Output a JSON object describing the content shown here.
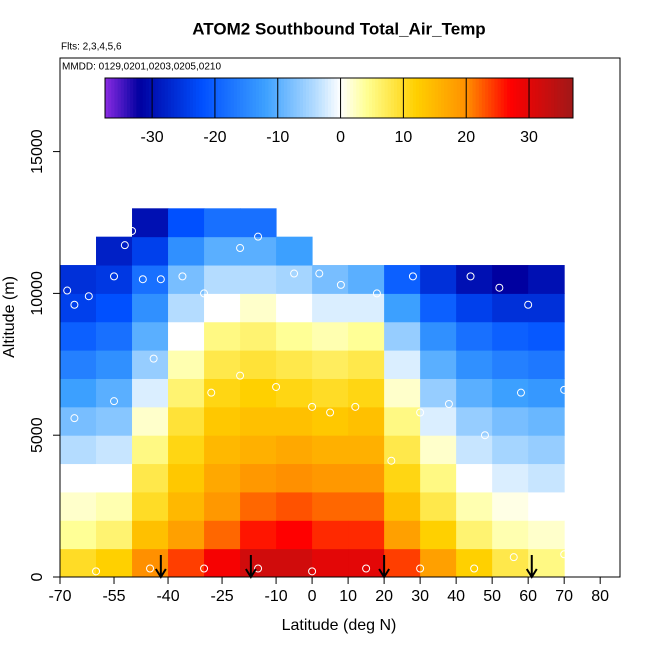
{
  "chart_data": {
    "type": "heatmap",
    "title": "ATOM2 Southbound Total_Air_Temp",
    "subtitle_lines": [
      "Flts: 2,3,4,5,6",
      "MMDD: 0129,0201,0203,0205,0210"
    ],
    "xlabel": "Latitude (deg N)",
    "ylabel": "Altitude (m)",
    "xlim": [
      -70,
      85.5
    ],
    "ylim": [
      0,
      18300
    ],
    "xticks": [
      -70,
      -55,
      -40,
      -25,
      -10,
      0,
      10,
      20,
      30,
      40,
      50,
      60,
      70,
      80
    ],
    "yticks": [
      0,
      5000,
      10000,
      15000
    ],
    "x": [
      -65,
      -55,
      -45,
      -35,
      -25,
      -15,
      -5,
      5,
      15,
      25,
      35,
      45,
      55,
      65
    ],
    "y": [
      0,
      1000,
      2000,
      3000,
      4000,
      5000,
      6000,
      7000,
      8000,
      9000,
      10000,
      11000,
      12000
    ],
    "z": [
      [
        10,
        4,
        2,
        0,
        -4,
        -8,
        -12,
        -16,
        -20,
        -24,
        -26,
        null,
        null
      ],
      [
        12,
        6,
        3,
        0,
        -3,
        -7,
        -10,
        -14,
        -18,
        -22,
        -25,
        -28,
        null
      ],
      [
        20,
        14,
        10,
        8,
        5,
        2,
        -2,
        -6,
        -10,
        -14,
        -18,
        -24,
        -30
      ],
      [
        24,
        18,
        15,
        13,
        11,
        9,
        6,
        3,
        0,
        -4,
        -8,
        -14,
        -22
      ],
      [
        28,
        22,
        19,
        17,
        15,
        13,
        11,
        8,
        5,
        0,
        -4,
        -10,
        -18
      ],
      [
        32,
        26,
        22,
        19,
        16,
        14,
        12,
        9,
        6,
        2,
        -4,
        -10,
        -18
      ],
      [
        32,
        27,
        23,
        20,
        17,
        14,
        11,
        8,
        4,
        0,
        -5,
        -12,
        null
      ],
      [
        30,
        25,
        22,
        19,
        16,
        13,
        10,
        7,
        3,
        -2,
        -8,
        null,
        null
      ],
      [
        30,
        25,
        22,
        19,
        16,
        14,
        11,
        8,
        4,
        -2,
        -10,
        null,
        null
      ],
      [
        24,
        18,
        14,
        11,
        8,
        5,
        2,
        -2,
        -6,
        -12,
        -20,
        null,
        null
      ],
      [
        18,
        12,
        8,
        5,
        2,
        -2,
        -6,
        -10,
        -14,
        -20,
        -26,
        null,
        null
      ],
      [
        12,
        6,
        3,
        0,
        -3,
        -6,
        -10,
        -14,
        -18,
        -24,
        -30,
        null,
        null
      ],
      [
        8,
        3,
        1,
        -2,
        -5,
        -8,
        -12,
        -16,
        -20,
        -26,
        -32,
        null,
        null
      ],
      [
        5,
        2,
        0,
        -3,
        -6,
        -9,
        -13,
        -17,
        -21,
        -26,
        -30,
        null,
        null
      ]
    ],
    "clim": [
      -37.5,
      37
    ],
    "cticks": [
      -30,
      -20,
      -10,
      0,
      10,
      20,
      30
    ],
    "colorscale": [
      [
        -37.5,
        "#8a2be2"
      ],
      [
        -32,
        "#0000a0"
      ],
      [
        -22,
        "#0050ff"
      ],
      [
        -12,
        "#3ca0ff"
      ],
      [
        -4,
        "#b4dcff"
      ],
      [
        0,
        "#ffffff"
      ],
      [
        4,
        "#ffff96"
      ],
      [
        12,
        "#ffd000"
      ],
      [
        20,
        "#ff9000"
      ],
      [
        27,
        "#ff0000"
      ],
      [
        37,
        "#a01818"
      ]
    ],
    "points": [
      [
        -68,
        10100
      ],
      [
        -66,
        9600
      ],
      [
        -62,
        9900
      ],
      [
        -55,
        10600
      ],
      [
        -52,
        11700
      ],
      [
        -50,
        12200
      ],
      [
        -47,
        10500
      ],
      [
        -42,
        10500
      ],
      [
        -36,
        10600
      ],
      [
        -30,
        10000
      ],
      [
        -20,
        11600
      ],
      [
        -15,
        12000
      ],
      [
        -5,
        10700
      ],
      [
        2,
        10700
      ],
      [
        8,
        10300
      ],
      [
        18,
        10000
      ],
      [
        28,
        10600
      ],
      [
        44,
        10600
      ],
      [
        52,
        10200
      ],
      [
        60,
        9600
      ],
      [
        64,
        11300
      ],
      [
        -66,
        5600
      ],
      [
        -55,
        6200
      ],
      [
        -44,
        7700
      ],
      [
        -28,
        6500
      ],
      [
        -20,
        7100
      ],
      [
        -10,
        6700
      ],
      [
        0,
        6000
      ],
      [
        5,
        5800
      ],
      [
        12,
        6000
      ],
      [
        22,
        4100
      ],
      [
        30,
        5800
      ],
      [
        38,
        6100
      ],
      [
        48,
        5000
      ],
      [
        58,
        6500
      ],
      [
        70,
        6600
      ],
      [
        -60,
        200
      ],
      [
        -45,
        300
      ],
      [
        -30,
        300
      ],
      [
        -15,
        300
      ],
      [
        0,
        200
      ],
      [
        15,
        300
      ],
      [
        30,
        300
      ],
      [
        45,
        300
      ],
      [
        56,
        700
      ],
      [
        70,
        800
      ]
    ],
    "point_color": "#ffffff",
    "arrows": [
      -42,
      -17,
      20,
      61
    ]
  }
}
